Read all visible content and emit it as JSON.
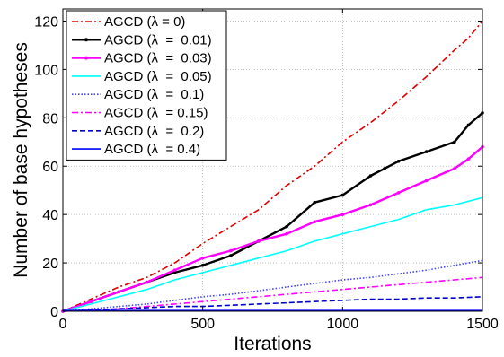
{
  "chart_data": {
    "type": "line",
    "title": "",
    "xlabel": "Iterations",
    "ylabel": "Number of base hypotheses",
    "xlim": [
      0,
      1500
    ],
    "ylim": [
      0,
      125
    ],
    "xticks": [
      0,
      500,
      1000,
      1500
    ],
    "yticks": [
      0,
      20,
      40,
      60,
      80,
      100,
      120
    ],
    "grid": true,
    "legend_position": "top-left",
    "series": [
      {
        "name": "AGCD (λ = 0)",
        "color": "#e00000",
        "dash": "dashdot",
        "marker": false,
        "x": [
          0,
          100,
          200,
          300,
          400,
          500,
          600,
          700,
          800,
          900,
          1000,
          1100,
          1200,
          1300,
          1400,
          1450,
          1500
        ],
        "y": [
          0,
          5,
          10,
          14,
          20,
          28,
          35,
          42,
          52,
          60,
          70,
          78,
          87,
          97,
          108,
          113,
          120
        ]
      },
      {
        "name": "AGCD (λ  =  0.01)",
        "color": "#000000",
        "dash": "solid",
        "marker": true,
        "x": [
          0,
          100,
          200,
          300,
          400,
          500,
          600,
          700,
          800,
          900,
          1000,
          1100,
          1150,
          1200,
          1300,
          1400,
          1450,
          1500
        ],
        "y": [
          0,
          4,
          8,
          12,
          16,
          19,
          23,
          29,
          35,
          45,
          48,
          56,
          59,
          62,
          66,
          70,
          77,
          82
        ]
      },
      {
        "name": "AGCD (λ  =  0.03)",
        "color": "#ff00ff",
        "dash": "solid",
        "marker": true,
        "x": [
          0,
          100,
          200,
          300,
          400,
          500,
          600,
          700,
          800,
          900,
          1000,
          1100,
          1200,
          1300,
          1400,
          1450,
          1500
        ],
        "y": [
          0,
          4,
          8,
          12,
          17,
          22,
          25,
          29,
          32,
          37,
          40,
          44,
          49,
          54,
          59,
          63,
          68
        ]
      },
      {
        "name": "AGCD (λ  =  0.05)",
        "color": "#00ffff",
        "dash": "solid",
        "marker": false,
        "x": [
          0,
          100,
          200,
          300,
          400,
          500,
          600,
          700,
          800,
          900,
          1000,
          1100,
          1200,
          1300,
          1400,
          1500
        ],
        "y": [
          0,
          3,
          6,
          9,
          13,
          16,
          19,
          22,
          25,
          29,
          32,
          35,
          38,
          42,
          44,
          47
        ]
      },
      {
        "name": "AGCD (λ  =  0.1)",
        "color": "#4040ff",
        "dash": "dotted",
        "marker": false,
        "x": [
          0,
          100,
          200,
          300,
          400,
          500,
          600,
          700,
          800,
          900,
          1000,
          1100,
          1200,
          1300,
          1400,
          1500
        ],
        "y": [
          0,
          1,
          2,
          3,
          4.5,
          6,
          7,
          8.5,
          10,
          11.5,
          13,
          14,
          15.5,
          17,
          19,
          21
        ]
      },
      {
        "name": "AGCD (λ  = 0.15)",
        "color": "#ff00ff",
        "dash": "dashdot",
        "marker": false,
        "x": [
          0,
          100,
          200,
          300,
          400,
          500,
          600,
          700,
          800,
          900,
          1000,
          1100,
          1200,
          1300,
          1400,
          1500
        ],
        "y": [
          0,
          0.5,
          1,
          2,
          3,
          4,
          5,
          6,
          7,
          8,
          9,
          10,
          11,
          12,
          13,
          14
        ]
      },
      {
        "name": "AGCD (λ  =  0.2)",
        "color": "#0000cc",
        "dash": "dashed",
        "marker": false,
        "x": [
          0,
          100,
          200,
          300,
          400,
          500,
          600,
          700,
          800,
          900,
          1000,
          1100,
          1200,
          1300,
          1400,
          1500
        ],
        "y": [
          0,
          0.5,
          1,
          1.5,
          2,
          2,
          2.5,
          3,
          3.5,
          4,
          4.5,
          5,
          5,
          5.5,
          5.5,
          6
        ]
      },
      {
        "name": "AGCD (λ  = 0.4)",
        "color": "#0000ff",
        "dash": "solid",
        "marker": false,
        "x": [
          0,
          1500
        ],
        "y": [
          0.3,
          0.3
        ]
      }
    ]
  }
}
